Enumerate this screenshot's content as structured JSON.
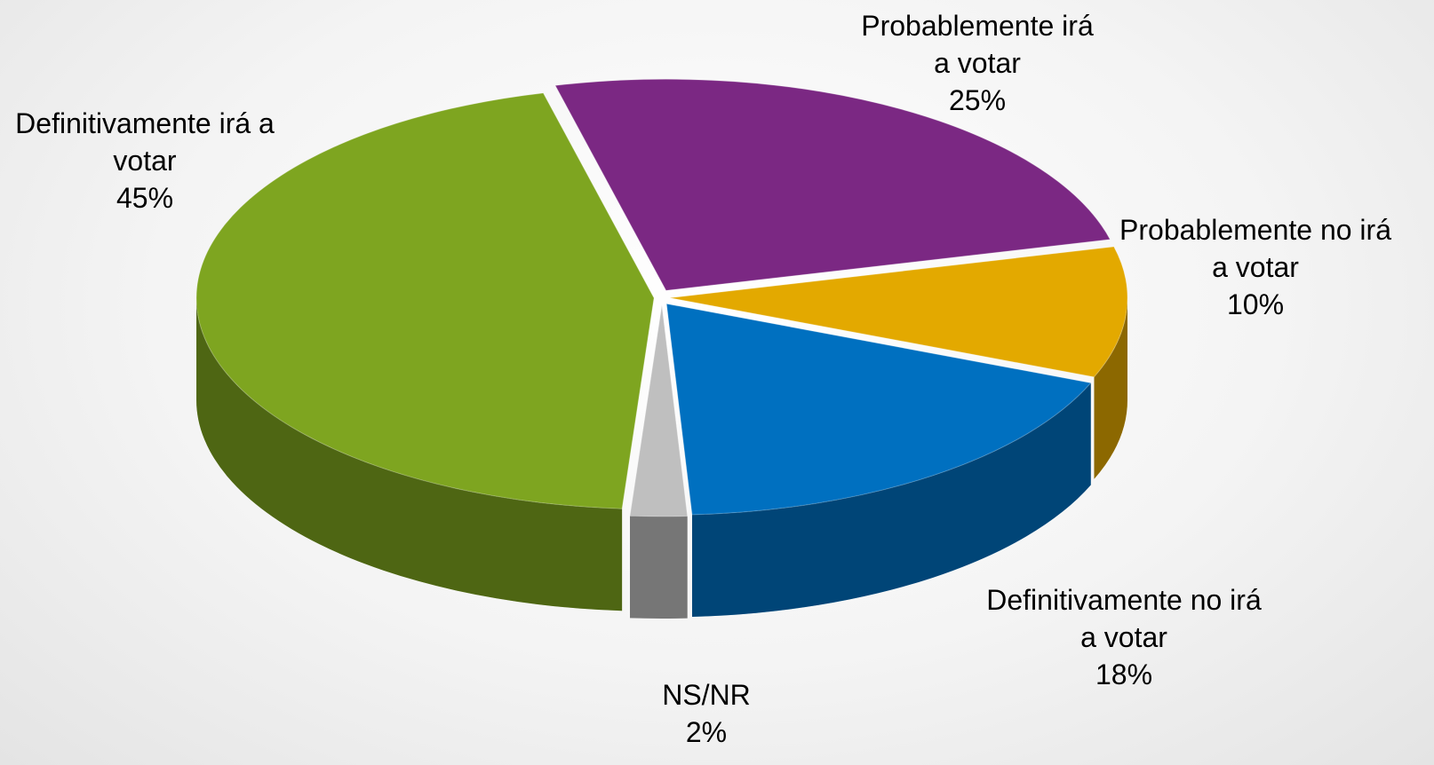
{
  "chart_data": {
    "type": "pie",
    "categories": [
      "Probablemente irá a votar",
      "Probablemente no irá a votar",
      "Definitivamente no irá a votar",
      "NS/NR",
      "Definitivamente irá a votar"
    ],
    "values": [
      25,
      10,
      18,
      2,
      45
    ],
    "value_labels": [
      "25%",
      "10%",
      "18%",
      "2%",
      "45%"
    ],
    "colors": [
      "#7b2883",
      "#e3a900",
      "#0070c0",
      "#bfbfbf",
      "#7ea520"
    ]
  }
}
